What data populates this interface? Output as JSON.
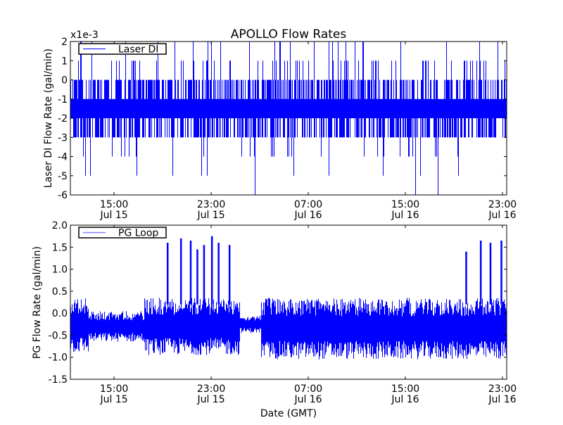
{
  "chart_data": [
    {
      "type": "line",
      "title": "APOLLO Flow Rates",
      "ylabel": "Laser DI Flow Rate (gal/min)",
      "y_scale_label": "x1e-3",
      "ylim": [
        -6,
        2
      ],
      "yticks": [
        "2",
        "1",
        "0",
        "-1",
        "-2",
        "-3",
        "-4",
        "-5",
        "-6"
      ],
      "yticks_values": [
        2,
        1,
        0,
        -1,
        -2,
        -3,
        -4,
        -5,
        -6
      ],
      "x_units": "hours relative to 15:00 Jul 15 (GMT)",
      "xlim": [
        -3.6,
        32.35
      ],
      "xticks": [
        {
          "value": 0,
          "time": "15:00",
          "date": "Jul 15"
        },
        {
          "value": 8,
          "time": "23:00",
          "date": "Jul 15"
        },
        {
          "value": 16,
          "time": "07:00",
          "date": "Jul 16"
        },
        {
          "value": 24,
          "time": "15:00",
          "date": "Jul 16"
        },
        {
          "value": 32,
          "time": "23:00",
          "date": "Jul 16"
        }
      ],
      "legend": {
        "label": "Laser DI",
        "placement": "upper-left"
      },
      "series": [
        {
          "name": "Laser DI",
          "color": "#0000ff",
          "quantized_levels": [
            -6,
            -5,
            -4,
            -3,
            -2,
            -1,
            0,
            1,
            2
          ],
          "typical_band": [
            -2,
            -1
          ],
          "common_range": [
            -3,
            0
          ],
          "occasional_range": [
            -5,
            2
          ],
          "min": -6,
          "max": 2
        }
      ]
    },
    {
      "type": "line",
      "ylabel": "PG Flow Rate (gal/min)",
      "xlabel": "Date (GMT)",
      "ylim": [
        -1.5,
        2.0
      ],
      "yticks": [
        "2.0",
        "1.5",
        "1.0",
        "0.5",
        "0.0",
        "-0.5",
        "-1.0",
        "-1.5"
      ],
      "yticks_values": [
        2.0,
        1.5,
        1.0,
        0.5,
        0.0,
        -0.5,
        -1.0,
        -1.5
      ],
      "x_units": "hours relative to 15:00 Jul 15 (GMT)",
      "xlim": [
        -3.6,
        32.35
      ],
      "xticks": [
        {
          "value": 0,
          "time": "15:00",
          "date": "Jul 15"
        },
        {
          "value": 8,
          "time": "23:00",
          "date": "Jul 15"
        },
        {
          "value": 16,
          "time": "07:00",
          "date": "Jul 16"
        },
        {
          "value": 24,
          "time": "15:00",
          "date": "Jul 16"
        },
        {
          "value": 32,
          "time": "23:00",
          "date": "Jul 16"
        }
      ],
      "legend": {
        "label": "PG Loop",
        "placement": "upper-left"
      },
      "series": [
        {
          "name": "PG Loop",
          "color": "#0000ff",
          "envelope_segments": [
            {
              "t0": -3.6,
              "t1": -2.1,
              "low": -0.9,
              "high": 0.35
            },
            {
              "t0": -2.1,
              "t1": 2.5,
              "low": -0.65,
              "high": 0.05
            },
            {
              "t0": 2.5,
              "t1": 10.4,
              "low": -0.95,
              "high": 0.35
            },
            {
              "t0": 10.4,
              "t1": 12.1,
              "low": -0.45,
              "high": -0.05
            },
            {
              "t0": 12.1,
              "t1": 32.35,
              "low": -1.05,
              "high": 0.35
            }
          ],
          "spikes": [
            {
              "t": 4.4,
              "value": 1.6
            },
            {
              "t": 5.5,
              "value": 1.7
            },
            {
              "t": 6.3,
              "value": 1.65
            },
            {
              "t": 6.85,
              "value": 1.45
            },
            {
              "t": 7.4,
              "value": 1.55
            },
            {
              "t": 8.05,
              "value": 1.75
            },
            {
              "t": 8.6,
              "value": 1.6
            },
            {
              "t": 9.5,
              "value": 1.55
            },
            {
              "t": 29.0,
              "value": 1.4
            },
            {
              "t": 30.2,
              "value": 1.65
            },
            {
              "t": 31.0,
              "value": 1.6
            },
            {
              "t": 31.9,
              "value": 1.65
            }
          ]
        }
      ]
    }
  ]
}
